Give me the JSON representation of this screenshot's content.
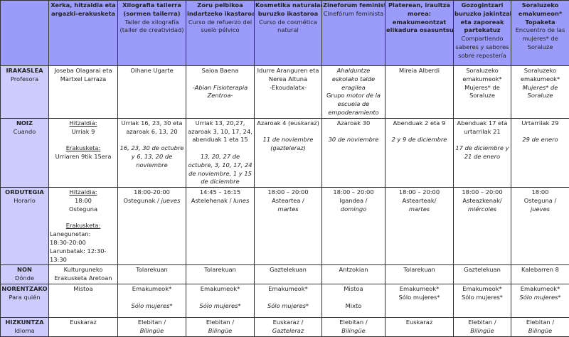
{
  "colors": {
    "header_bg": "#9b9bfb",
    "label_bg": "#ccccff",
    "border": "#333333"
  },
  "header": [
    [],
    [
      {
        "t": "Xerka, hitzaldia eta",
        "s": "b"
      },
      {
        "t": "argazki-erakusketa",
        "s": "b"
      }
    ],
    [
      {
        "t": "Xilografia tailerra",
        "s": "b"
      },
      {
        "t": "(sormen tailerra)",
        "s": "b"
      },
      "Taller de xilografía",
      "(taller de creatividad)"
    ],
    [
      {
        "t": "Zoru pelbikoa",
        "s": "b"
      },
      {
        "t": "indartzeko ikastaroa",
        "s": "b"
      },
      "Curso de refuerzo del",
      "suelo pélvico"
    ],
    [
      {
        "t": "Kosmetika naturalari",
        "s": "b"
      },
      {
        "t": "buruzko ikastaroa",
        "s": "b"
      },
      "Curso de cosmética",
      "natural"
    ],
    [
      {
        "t": "Zineforum feminista",
        "s": "b"
      },
      "Cinefórum feminista"
    ],
    [
      {
        "t": "Platerean, iraultza",
        "s": "b"
      },
      {
        "t": "morea:",
        "s": "b"
      },
      {
        "t": "emakumeontzat",
        "s": "b"
      },
      {
        "t": "elikadura osasuntsua",
        "s": "b"
      }
    ],
    [
      {
        "t": "Gozogintzari",
        "s": "b"
      },
      {
        "t": "buruzko jakintzak",
        "s": "b"
      },
      {
        "t": "eta zaporeak",
        "s": "b"
      },
      {
        "t": "partekatuz",
        "s": "b"
      },
      "Compartiendo",
      "saberes y sabores",
      "sobre repostería"
    ],
    [
      {
        "t": "Soraluzeko",
        "s": "b"
      },
      {
        "t": "emakumeon*",
        "s": "b"
      },
      {
        "t": "Topaketa",
        "s": "b"
      },
      "Encuentro de las",
      "mujeres* de",
      "Soraluze"
    ]
  ],
  "rows": [
    {
      "name": "irakaslea",
      "label": "IRAKASLEA",
      "sublabel": "Profesora",
      "cells": [
        [
          "Joseba Olagarai eta",
          "Martxel Larraza"
        ],
        [
          "Oihane Ugarte"
        ],
        [
          "Saioa Baena",
          "",
          {
            "t": "-Abian Fisioterapia",
            "s": "i"
          },
          {
            "t": "Zentroa-",
            "s": "i"
          }
        ],
        [
          "Idurre Aranguren eta",
          "Nerea Altuna",
          "-Ekoudalatx-"
        ],
        [
          {
            "t": "Ahalduntze",
            "s": "i"
          },
          {
            "t": "eskolako talde",
            "s": "i"
          },
          {
            "t": "eragilea",
            "s": "i"
          },
          [
            {
              "t": "Grupo ",
              "s": "n"
            },
            {
              "t": "motor de la",
              "s": "i"
            }
          ],
          {
            "t": "escuela de",
            "s": "i"
          },
          {
            "t": "empoderamiento",
            "s": "i"
          }
        ],
        [
          "Mireia Alberdi"
        ],
        [
          "Soraluzeko",
          "emakumeok*",
          "Mujeres* de",
          "Soraluze"
        ],
        [
          "Soraluzeko",
          "emakumeok*",
          {
            "t": "Mujeres* de",
            "s": "i"
          },
          {
            "t": "Soraluze",
            "s": "i"
          }
        ]
      ]
    },
    {
      "name": "noiz",
      "label": "NOIZ",
      "sublabel": "Cuando",
      "cells": [
        [
          {
            "t": "Hitzaldia:",
            "s": "u"
          },
          "Urriak 9",
          "",
          {
            "t": "Erakusketa:",
            "s": "u"
          },
          "Urriaren 9tik 15era"
        ],
        [
          "Urriak 16, 23, 30 eta",
          "azaroak 6, 13, 20",
          "",
          {
            "t": "16, 23, 30 de octubre",
            "s": "i"
          },
          {
            "t": "y 6, 13, 20 de",
            "s": "i"
          },
          {
            "t": "noviembre",
            "s": "i"
          }
        ],
        [
          "Urriak 13, 20,27,",
          "azaroak 3, 10, 17, 24,",
          "abenduak 1 eta 15",
          "",
          {
            "t": "13, 20, 27 de",
            "s": "i"
          },
          {
            "t": "octubre, 3, 10, 17, 24",
            "s": "i"
          },
          {
            "t": "de noviembre, 1 y 15",
            "s": "i"
          },
          {
            "t": "de diciembre",
            "s": "i"
          }
        ],
        [
          "Azaroak 4 (euskaraz)",
          "",
          {
            "t": "11 de noviembre",
            "s": "i"
          },
          {
            "t": "(gazteleraz)",
            "s": "i"
          }
        ],
        [
          "Azaroak 30",
          "",
          {
            "t": "30 de noviembre",
            "s": "i"
          }
        ],
        [
          "Abenduak 2 eta 9",
          "",
          {
            "t": "2 y 9 de diciembre",
            "s": "i"
          }
        ],
        [
          "Abenduak 17 eta",
          "urtarrilak 21",
          "",
          {
            "t": "17 de diciembre y",
            "s": "i"
          },
          {
            "t": "21 de enero",
            "s": "i"
          }
        ],
        [
          "Urtarrilak 29",
          "",
          {
            "t": "29 de enero",
            "s": "i"
          }
        ]
      ]
    },
    {
      "name": "ordutegia",
      "label": "ORDUTEGIA",
      "sublabel": "Horario",
      "cells": [
        [
          {
            "t": "Hitzaldia:",
            "s": "u"
          },
          "18:00",
          "Osteguna",
          "",
          {
            "t": "Erakusketa:",
            "s": "u"
          },
          {
            "t": "Lanegunetan:",
            "s": "left"
          },
          {
            "t": "18:30-20:00",
            "s": "left"
          },
          {
            "t": "Larunbatak: 12:30-",
            "s": "left"
          },
          {
            "t": "13:30",
            "s": "left"
          }
        ],
        [
          "18:00-20:00",
          [
            {
              "t": "Ostegunak / ",
              "s": "n"
            },
            {
              "t": "jueves",
              "s": "i"
            }
          ]
        ],
        [
          "14:45 – 16:15",
          [
            {
              "t": "Astelehenak / ",
              "s": "n"
            },
            {
              "t": "lunes",
              "s": "i"
            }
          ]
        ],
        [
          "18:00 – 20:00",
          "Asteartea /",
          {
            "t": "martes",
            "s": "i"
          }
        ],
        [
          "18:00 – 20:00",
          "Igandea /",
          {
            "t": "domingo",
            "s": "i"
          }
        ],
        [
          "18:00 – 20:00",
          "Astearteak/",
          {
            "t": "martes",
            "s": "i"
          }
        ],
        [
          "18:00 – 20:00",
          "Asteazkenak/",
          {
            "t": "miércoles",
            "s": "i"
          }
        ],
        [
          "18:00",
          "Osteguna /",
          {
            "t": "jueves",
            "s": "i"
          }
        ]
      ]
    },
    {
      "name": "non",
      "label": "NON",
      "sublabel": "Dónde",
      "cells": [
        [
          "Kulturguneko",
          "Erakusketa Aretoan"
        ],
        [
          "Tolarekuan"
        ],
        [
          "Tolarekuan"
        ],
        [
          "Gaztelekuan"
        ],
        [
          "Antzokian"
        ],
        [
          "Tolarekuan"
        ],
        [
          "Gaztelekuan"
        ],
        [
          "Kalebarren 8"
        ]
      ]
    },
    {
      "name": "norentzako",
      "label": "NORENTZAKO",
      "sublabel": "Para quién",
      "cells": [
        [
          "Mistoa"
        ],
        [
          "Emakumeok*",
          "",
          {
            "t": "Sólo mujeres*",
            "s": "i"
          }
        ],
        [
          "Emakumeok*",
          "",
          {
            "t": "Sólo mujeres*",
            "s": "i"
          }
        ],
        [
          "Emakumeok*",
          "",
          {
            "t": "Sólo mujeres*",
            "s": "i"
          }
        ],
        [
          "Mistoa",
          "",
          "Mixto"
        ],
        [
          "Emakumeok*",
          "Sólo mujeres*"
        ],
        [
          "Emakumeok*",
          "Sólo mujeres*"
        ],
        [
          "Emakumeok*",
          {
            "t": "Sólo mujeres*",
            "s": "i"
          }
        ]
      ]
    },
    {
      "name": "hizkuntza",
      "label": "HIZKUNTZA",
      "sublabel": "Idioma",
      "cells": [
        [
          "Euskaraz"
        ],
        [
          "Elebitan /",
          {
            "t": "Bilingüe",
            "s": "i"
          }
        ],
        [
          "Elebitan /",
          {
            "t": "Bilingüe",
            "s": "i"
          }
        ],
        [
          "Euskaraz /",
          {
            "t": "Gazteleraz",
            "s": "i"
          }
        ],
        [
          "Elebitan /",
          {
            "t": "Bilingüe",
            "s": "i"
          }
        ],
        [
          "Euskaraz"
        ],
        [
          "Elebitan /",
          {
            "t": "Bilingüe",
            "s": "i"
          }
        ],
        [
          "Elebitan /",
          {
            "t": "Bilingüe",
            "s": "i"
          }
        ]
      ]
    }
  ]
}
